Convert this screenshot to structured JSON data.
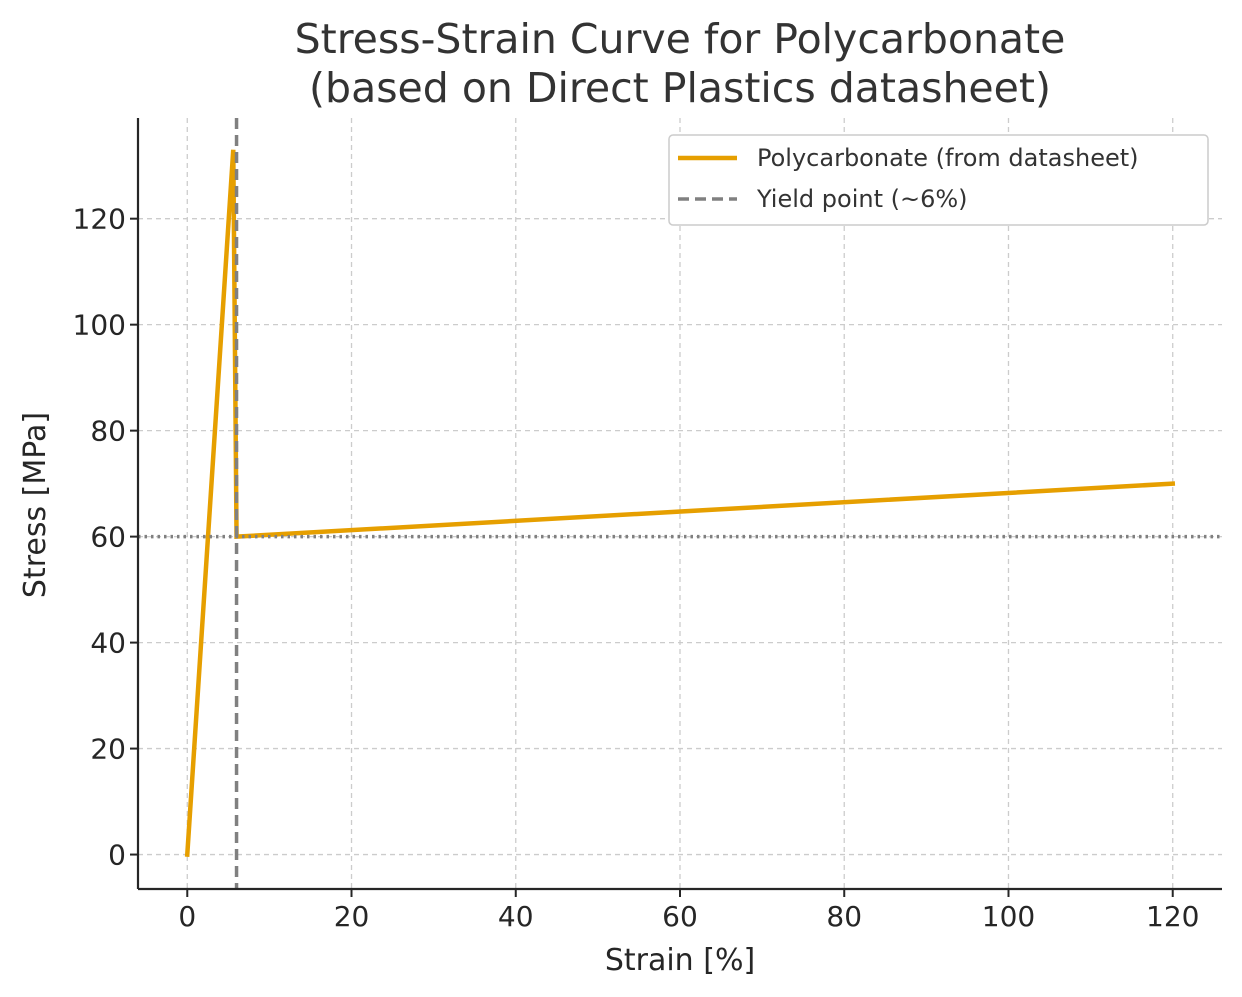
{
  "chart_data": {
    "type": "line",
    "title": "Stress-Strain Curve for Polycarbonate\n(based on Direct Plastics datasheet)",
    "xlabel": "Strain [%]",
    "ylabel": "Stress [MPa]",
    "xlim": [
      -6,
      126
    ],
    "ylim": [
      -6.5,
      139
    ],
    "x_ticks": [
      0,
      20,
      40,
      60,
      80,
      100,
      120
    ],
    "y_ticks": [
      0,
      20,
      40,
      60,
      80,
      100,
      120
    ],
    "grid": true,
    "legend_position": "top-right",
    "series": [
      {
        "name": "Polycarbonate (from datasheet)",
        "color": "#E69F00",
        "style": "solid",
        "x": [
          0,
          5.6,
          6,
          120
        ],
        "y": [
          0,
          133,
          60,
          70
        ]
      }
    ],
    "reference_lines": [
      {
        "name": "Yield point (~6%)",
        "orientation": "vertical",
        "value": 6,
        "color": "#808080",
        "style": "dashed",
        "in_legend": true
      },
      {
        "orientation": "horizontal",
        "value": 60,
        "color": "#808080",
        "style": "dotted",
        "in_legend": false
      }
    ]
  }
}
